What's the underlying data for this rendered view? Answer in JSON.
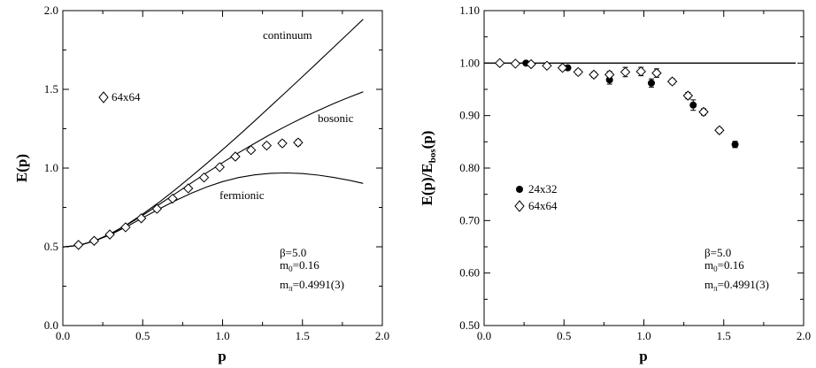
{
  "chart_data": [
    {
      "type": "line",
      "xlabel": "p",
      "ylabel": "E(p)",
      "xlim": [
        0.0,
        2.0
      ],
      "ylim": [
        0.0,
        2.0
      ],
      "xticks": [
        "0.0",
        "0.5",
        "1.0",
        "1.5",
        "2.0"
      ],
      "yticks": [
        "0.0",
        "0.5",
        "1.0",
        "1.5",
        "2.0"
      ],
      "grid": false,
      "legend": {
        "placement": "top-left",
        "entries": [
          {
            "label": "64x64",
            "marker": "diamond-open"
          }
        ]
      },
      "curves": [
        {
          "label": "continuum",
          "x": [
            0,
            0.1,
            0.2,
            0.3,
            0.4,
            0.5,
            0.6,
            0.7,
            0.8,
            0.9,
            1.0,
            1.1,
            1.2,
            1.3,
            1.4,
            1.5,
            1.6,
            1.7,
            1.8,
            1.88
          ],
          "y": [
            0.499,
            0.509,
            0.538,
            0.584,
            0.641,
            0.708,
            0.781,
            0.86,
            0.943,
            1.029,
            1.117,
            1.207,
            1.299,
            1.392,
            1.486,
            1.581,
            1.676,
            1.772,
            1.868,
            1.945
          ]
        },
        {
          "label": "bosonic",
          "x": [
            0,
            0.1,
            0.2,
            0.3,
            0.4,
            0.5,
            0.6,
            0.7,
            0.8,
            0.9,
            1.0,
            1.1,
            1.2,
            1.3,
            1.4,
            1.5,
            1.6,
            1.7,
            1.8,
            1.88
          ],
          "y": [
            0.499,
            0.509,
            0.538,
            0.582,
            0.638,
            0.7,
            0.767,
            0.835,
            0.903,
            0.97,
            1.035,
            1.097,
            1.157,
            1.214,
            1.268,
            1.319,
            1.367,
            1.412,
            1.453,
            1.484
          ]
        },
        {
          "label": "fermionic",
          "x": [
            0,
            0.1,
            0.2,
            0.3,
            0.4,
            0.5,
            0.6,
            0.7,
            0.8,
            0.9,
            1.0,
            1.1,
            1.2,
            1.3,
            1.4,
            1.5,
            1.6,
            1.7,
            1.8,
            1.88
          ],
          "y": [
            0.499,
            0.509,
            0.537,
            0.578,
            0.628,
            0.684,
            0.739,
            0.791,
            0.839,
            0.88,
            0.914,
            0.94,
            0.957,
            0.967,
            0.969,
            0.965,
            0.955,
            0.94,
            0.921,
            0.903
          ]
        }
      ],
      "series": [
        {
          "name": "64x64",
          "marker": "diamond-open",
          "x": [
            0.098,
            0.196,
            0.294,
            0.393,
            0.491,
            0.589,
            0.687,
            0.785,
            0.884,
            0.982,
            1.08,
            1.178,
            1.276,
            1.374,
            1.473
          ],
          "y": [
            0.512,
            0.538,
            0.578,
            0.624,
            0.681,
            0.741,
            0.806,
            0.871,
            0.94,
            1.006,
            1.073,
            1.114,
            1.143,
            1.157,
            1.162
          ],
          "err": [
            0.006,
            0.006,
            0.007,
            0.008,
            0.009,
            0.01,
            0.012,
            0.012,
            0.014,
            0.015,
            0.015,
            0.015,
            0.016,
            0.017,
            0.018
          ]
        }
      ],
      "annotations": [
        {
          "text": "continuum",
          "x": 1.25,
          "y": 1.8
        },
        {
          "text": "bosonic",
          "x": 1.57,
          "y": 1.29
        },
        {
          "text": "fermionic",
          "x": 0.98,
          "y": 0.79
        }
      ],
      "params": {
        "beta": "β=5.0",
        "m0_main": "m",
        "m0_sub": "0",
        "m0_val": "=0.16",
        "mpi_main": "m",
        "mpi_sub": "π",
        "mpi_val": "=0.4991(3)"
      }
    },
    {
      "type": "scatter",
      "xlabel": "p",
      "ylabel_main": "E(p)/E",
      "ylabel_sub": "bos",
      "ylabel_tail": "(p)",
      "xlim": [
        0.0,
        2.0
      ],
      "ylim": [
        0.5,
        1.1
      ],
      "xticks": [
        "0.0",
        "0.5",
        "1.0",
        "1.5",
        "2.0"
      ],
      "yticks": [
        "0.50",
        "0.60",
        "0.70",
        "0.80",
        "0.90",
        "1.00",
        "1.10"
      ],
      "grid": false,
      "legend": {
        "placement": "center-left",
        "entries": [
          {
            "label": "24x32",
            "marker": "circle-filled"
          },
          {
            "label": "64x64",
            "marker": "diamond-open"
          }
        ]
      },
      "reference_line": {
        "y": 1.0,
        "x_range": [
          0.0,
          1.95
        ]
      },
      "series": [
        {
          "name": "24x32",
          "marker": "circle-filled",
          "x": [
            0.262,
            0.524,
            0.785,
            1.047,
            1.309,
            1.571
          ],
          "y": [
            1.0,
            0.991,
            0.968,
            0.962,
            0.92,
            0.845
          ],
          "err": [
            0.002,
            0.003,
            0.008,
            0.008,
            0.01,
            0.006
          ]
        },
        {
          "name": "64x64",
          "marker": "diamond-open",
          "x": [
            0.098,
            0.196,
            0.294,
            0.393,
            0.491,
            0.589,
            0.687,
            0.785,
            0.884,
            0.982,
            1.08,
            1.178,
            1.276,
            1.374,
            1.473
          ],
          "y": [
            1.0,
            0.999,
            0.998,
            0.995,
            0.991,
            0.983,
            0.978,
            0.978,
            0.983,
            0.984,
            0.981,
            0.965,
            0.938,
            0.907,
            0.872
          ],
          "err": [
            0.001,
            0.002,
            0.002,
            0.003,
            0.005,
            0.005,
            0.005,
            0.006,
            0.009,
            0.008,
            0.008,
            0.005,
            0.006,
            0.006,
            0.005
          ]
        }
      ],
      "params": {
        "beta": "β=5.0",
        "m0_main": "m",
        "m0_sub": "0",
        "m0_val": "=0.16",
        "mpi_main": "m",
        "mpi_sub": "π",
        "mpi_val": "=0.4991(3)"
      }
    }
  ]
}
